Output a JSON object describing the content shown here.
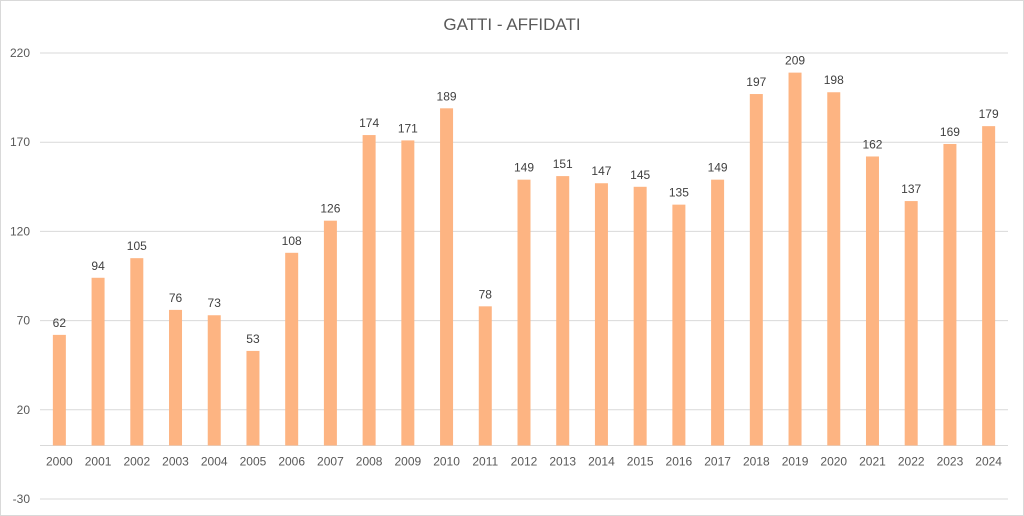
{
  "chart_data": {
    "type": "bar",
    "title": "GATTI - AFFIDATI",
    "xlabel": "",
    "ylabel": "",
    "categories": [
      "2000",
      "2001",
      "2002",
      "2003",
      "2004",
      "2005",
      "2006",
      "2007",
      "2008",
      "2009",
      "2010",
      "2011",
      "2012",
      "2013",
      "2014",
      "2015",
      "2016",
      "2017",
      "2018",
      "2019",
      "2020",
      "2021",
      "2022",
      "2023",
      "2024"
    ],
    "values": [
      62,
      94,
      105,
      76,
      73,
      53,
      108,
      126,
      174,
      171,
      189,
      78,
      149,
      151,
      147,
      145,
      135,
      149,
      197,
      209,
      198,
      162,
      137,
      169,
      179
    ],
    "ylim": [
      -30,
      220
    ],
    "yticks": [
      "220",
      "170",
      "120",
      "70",
      "20",
      "-30"
    ],
    "ytick_values": [
      220,
      170,
      120,
      70,
      20,
      -30
    ],
    "bar_color": "#fdb482",
    "grid": true,
    "legend": "none"
  }
}
